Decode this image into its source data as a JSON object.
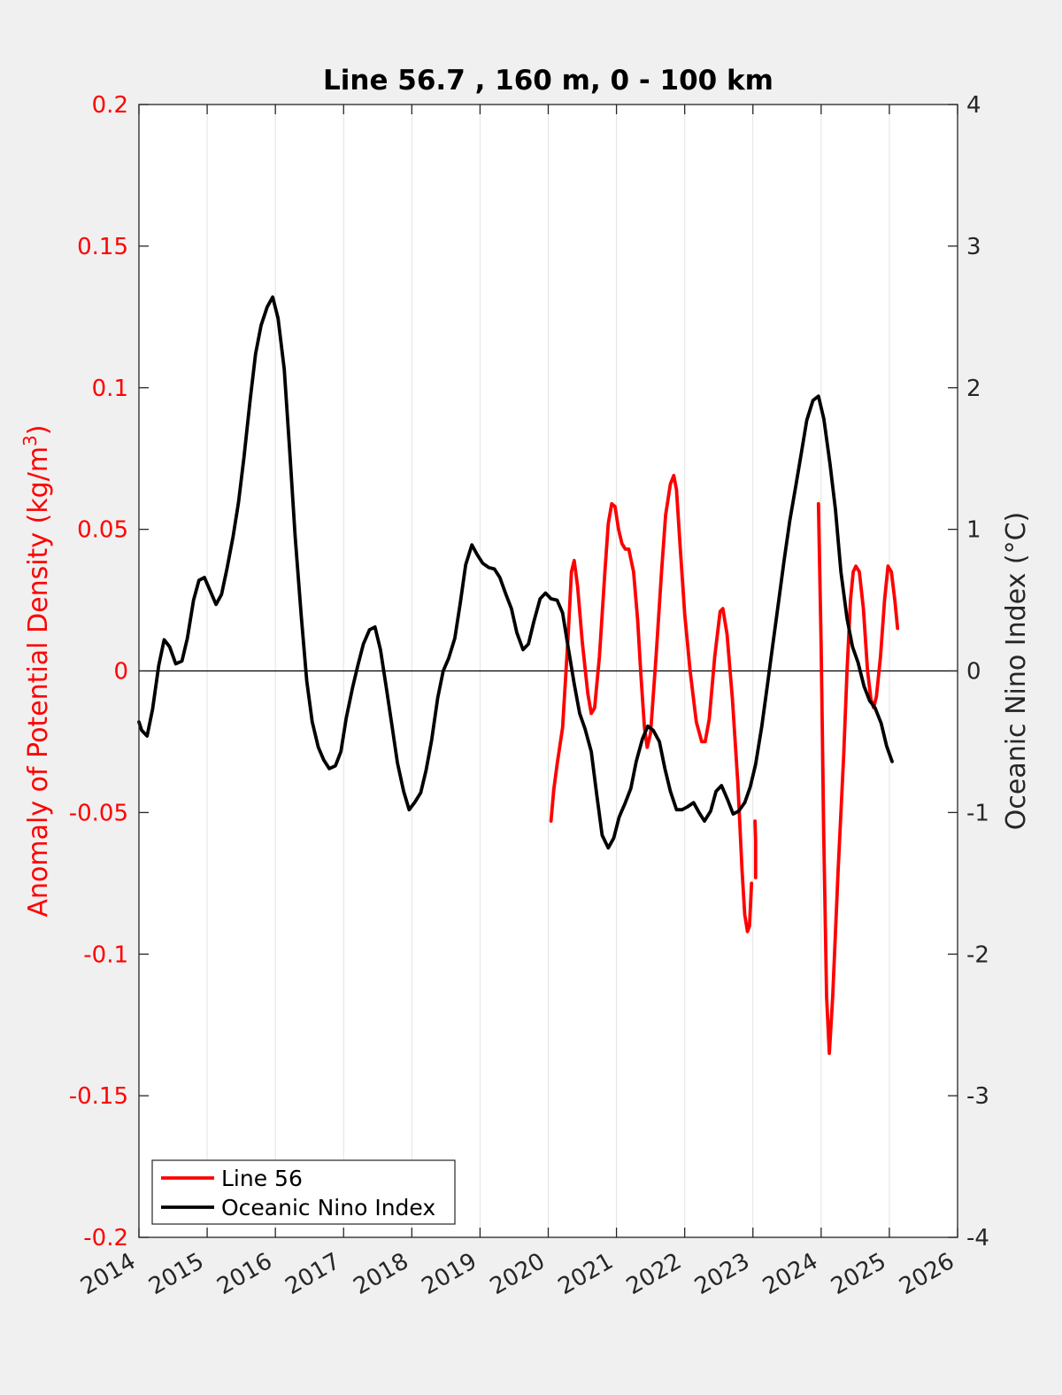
{
  "chart_data": {
    "type": "line",
    "title": "Line 56.7 , 160 m, 0 - 100 km",
    "xlabel": "",
    "ylabel_left": "Anomaly of Potential Density (kg/m",
    "ylabel_left_sup": "3",
    "ylabel_left_close": ")",
    "ylabel_right": "Oceanic Nino Index (°C)",
    "xlim": [
      2014,
      2026
    ],
    "ylim_left": [
      -0.2,
      0.2
    ],
    "ylim_right": [
      -4,
      4
    ],
    "grid": "vertical",
    "legend_position": "bottom-left",
    "x_ticks": [
      {
        "value": 2014,
        "label": "2014"
      },
      {
        "value": 2015,
        "label": "2015"
      },
      {
        "value": 2016,
        "label": "2016"
      },
      {
        "value": 2017,
        "label": "2017"
      },
      {
        "value": 2018,
        "label": "2018"
      },
      {
        "value": 2019,
        "label": "2019"
      },
      {
        "value": 2020,
        "label": "2020"
      },
      {
        "value": 2021,
        "label": "2021"
      },
      {
        "value": 2022,
        "label": "2022"
      },
      {
        "value": 2023,
        "label": "2023"
      },
      {
        "value": 2024,
        "label": "2024"
      },
      {
        "value": 2025,
        "label": "2025"
      },
      {
        "value": 2026,
        "label": "2026"
      }
    ],
    "y_ticks_left": [
      {
        "value": 0.2,
        "label": "0.2"
      },
      {
        "value": 0.15,
        "label": "0.15"
      },
      {
        "value": 0.1,
        "label": "0.1"
      },
      {
        "value": 0.05,
        "label": "0.05"
      },
      {
        "value": 0,
        "label": "0"
      },
      {
        "value": -0.05,
        "label": "-0.05"
      },
      {
        "value": -0.1,
        "label": "-0.1"
      },
      {
        "value": -0.15,
        "label": "-0.15"
      },
      {
        "value": -0.2,
        "label": "-0.2"
      }
    ],
    "y_ticks_right": [
      {
        "value": 4,
        "label": "4"
      },
      {
        "value": 3,
        "label": "3"
      },
      {
        "value": 2,
        "label": "2"
      },
      {
        "value": 1,
        "label": "1"
      },
      {
        "value": 0,
        "label": "0"
      },
      {
        "value": -1,
        "label": "-1"
      },
      {
        "value": -2,
        "label": "-2"
      },
      {
        "value": -3,
        "label": "-3"
      },
      {
        "value": -4,
        "label": "-4"
      }
    ],
    "series": [
      {
        "name": "Line 56",
        "color": "#ff0000",
        "axis": "left",
        "segments": [
          [
            [
              2020.04,
              -0.053
            ],
            [
              2020.08,
              -0.042
            ],
            [
              2020.13,
              -0.033
            ],
            [
              2020.21,
              -0.02
            ],
            [
              2020.29,
              0.012
            ],
            [
              2020.34,
              0.035
            ],
            [
              2020.38,
              0.039
            ],
            [
              2020.43,
              0.03
            ],
            [
              2020.5,
              0.01
            ],
            [
              2020.58,
              -0.008
            ],
            [
              2020.63,
              -0.015
            ],
            [
              2020.68,
              -0.013
            ],
            [
              2020.75,
              0.005
            ],
            [
              2020.83,
              0.035
            ],
            [
              2020.88,
              0.052
            ],
            [
              2020.93,
              0.059
            ],
            [
              2020.98,
              0.058
            ],
            [
              2021.03,
              0.05
            ],
            [
              2021.08,
              0.045
            ],
            [
              2021.13,
              0.043
            ],
            [
              2021.18,
              0.043
            ],
            [
              2021.25,
              0.035
            ],
            [
              2021.31,
              0.018
            ],
            [
              2021.36,
              -0.002
            ],
            [
              2021.41,
              -0.02
            ],
            [
              2021.45,
              -0.027
            ],
            [
              2021.5,
              -0.022
            ],
            [
              2021.58,
              0.005
            ],
            [
              2021.66,
              0.035
            ],
            [
              2021.72,
              0.055
            ],
            [
              2021.79,
              0.066
            ],
            [
              2021.84,
              0.069
            ],
            [
              2021.88,
              0.064
            ],
            [
              2021.93,
              0.045
            ],
            [
              2022.0,
              0.02
            ],
            [
              2022.08,
              0.0
            ],
            [
              2022.17,
              -0.018
            ],
            [
              2022.25,
              -0.025
            ],
            [
              2022.3,
              -0.025
            ],
            [
              2022.36,
              -0.017
            ],
            [
              2022.44,
              0.005
            ],
            [
              2022.52,
              0.021
            ],
            [
              2022.56,
              0.022
            ],
            [
              2022.62,
              0.013
            ],
            [
              2022.7,
              -0.01
            ],
            [
              2022.78,
              -0.04
            ],
            [
              2022.84,
              -0.07
            ],
            [
              2022.88,
              -0.086
            ],
            [
              2022.92,
              -0.092
            ],
            [
              2022.95,
              -0.09
            ],
            [
              2022.98,
              -0.075
            ]
          ],
          [
            [
              2023.03,
              -0.053
            ],
            [
              2023.04,
              -0.06
            ],
            [
              2023.04,
              -0.073
            ]
          ],
          [
            [
              2023.96,
              0.059
            ],
            [
              2024.0,
              0.01
            ],
            [
              2024.04,
              -0.06
            ],
            [
              2024.08,
              -0.115
            ],
            [
              2024.12,
              -0.135
            ],
            [
              2024.17,
              -0.115
            ],
            [
              2024.25,
              -0.07
            ],
            [
              2024.33,
              -0.03
            ],
            [
              2024.38,
              0.0
            ],
            [
              2024.43,
              0.025
            ],
            [
              2024.47,
              0.035
            ],
            [
              2024.51,
              0.037
            ],
            [
              2024.56,
              0.035
            ],
            [
              2024.62,
              0.022
            ],
            [
              2024.68,
              0.0
            ],
            [
              2024.73,
              -0.01
            ],
            [
              2024.77,
              -0.013
            ],
            [
              2024.81,
              -0.009
            ],
            [
              2024.87,
              0.005
            ],
            [
              2024.93,
              0.025
            ],
            [
              2024.98,
              0.037
            ],
            [
              2025.03,
              0.035
            ],
            [
              2025.08,
              0.025
            ],
            [
              2025.12,
              0.015
            ]
          ]
        ]
      },
      {
        "name": "Oceanic Nino Index",
        "color": "#000000",
        "axis": "right",
        "segments": [
          [
            [
              2014.0,
              -0.36
            ],
            [
              2014.04,
              -0.42
            ],
            [
              2014.12,
              -0.46
            ],
            [
              2014.2,
              -0.27
            ],
            [
              2014.29,
              0.04
            ],
            [
              2014.37,
              0.22
            ],
            [
              2014.45,
              0.17
            ],
            [
              2014.54,
              0.05
            ],
            [
              2014.63,
              0.07
            ],
            [
              2014.71,
              0.23
            ],
            [
              2014.8,
              0.5
            ],
            [
              2014.88,
              0.64
            ],
            [
              2014.96,
              0.66
            ],
            [
              2015.05,
              0.56
            ],
            [
              2015.13,
              0.47
            ],
            [
              2015.21,
              0.54
            ],
            [
              2015.29,
              0.72
            ],
            [
              2015.38,
              0.95
            ],
            [
              2015.46,
              1.19
            ],
            [
              2015.54,
              1.51
            ],
            [
              2015.63,
              1.91
            ],
            [
              2015.71,
              2.24
            ],
            [
              2015.79,
              2.44
            ],
            [
              2015.88,
              2.57
            ],
            [
              2015.96,
              2.64
            ],
            [
              2016.04,
              2.49
            ],
            [
              2016.13,
              2.13
            ],
            [
              2016.21,
              1.55
            ],
            [
              2016.29,
              0.95
            ],
            [
              2016.38,
              0.38
            ],
            [
              2016.46,
              -0.07
            ],
            [
              2016.54,
              -0.36
            ],
            [
              2016.63,
              -0.54
            ],
            [
              2016.71,
              -0.63
            ],
            [
              2016.79,
              -0.69
            ],
            [
              2016.88,
              -0.67
            ],
            [
              2016.96,
              -0.57
            ],
            [
              2017.04,
              -0.33
            ],
            [
              2017.13,
              -0.12
            ],
            [
              2017.21,
              0.04
            ],
            [
              2017.29,
              0.19
            ],
            [
              2017.38,
              0.29
            ],
            [
              2017.46,
              0.31
            ],
            [
              2017.54,
              0.15
            ],
            [
              2017.63,
              -0.13
            ],
            [
              2017.71,
              -0.39
            ],
            [
              2017.79,
              -0.65
            ],
            [
              2017.88,
              -0.85
            ],
            [
              2017.96,
              -0.98
            ],
            [
              2018.04,
              -0.93
            ],
            [
              2018.13,
              -0.86
            ],
            [
              2018.21,
              -0.7
            ],
            [
              2018.29,
              -0.49
            ],
            [
              2018.38,
              -0.19
            ],
            [
              2018.46,
              0.0
            ],
            [
              2018.54,
              0.09
            ],
            [
              2018.63,
              0.23
            ],
            [
              2018.71,
              0.48
            ],
            [
              2018.79,
              0.75
            ],
            [
              2018.88,
              0.89
            ],
            [
              2018.96,
              0.82
            ],
            [
              2019.04,
              0.76
            ],
            [
              2019.13,
              0.73
            ],
            [
              2019.21,
              0.72
            ],
            [
              2019.29,
              0.66
            ],
            [
              2019.38,
              0.54
            ],
            [
              2019.46,
              0.44
            ],
            [
              2019.54,
              0.27
            ],
            [
              2019.63,
              0.15
            ],
            [
              2019.71,
              0.19
            ],
            [
              2019.79,
              0.35
            ],
            [
              2019.88,
              0.51
            ],
            [
              2019.96,
              0.55
            ],
            [
              2020.04,
              0.51
            ],
            [
              2020.13,
              0.5
            ],
            [
              2020.21,
              0.41
            ],
            [
              2020.29,
              0.17
            ],
            [
              2020.38,
              -0.09
            ],
            [
              2020.46,
              -0.3
            ],
            [
              2020.54,
              -0.41
            ],
            [
              2020.63,
              -0.57
            ],
            [
              2020.71,
              -0.87
            ],
            [
              2020.79,
              -1.16
            ],
            [
              2020.88,
              -1.25
            ],
            [
              2020.96,
              -1.18
            ],
            [
              2021.04,
              -1.03
            ],
            [
              2021.13,
              -0.93
            ],
            [
              2021.21,
              -0.83
            ],
            [
              2021.29,
              -0.64
            ],
            [
              2021.38,
              -0.48
            ],
            [
              2021.46,
              -0.39
            ],
            [
              2021.54,
              -0.42
            ],
            [
              2021.63,
              -0.5
            ],
            [
              2021.71,
              -0.69
            ],
            [
              2021.79,
              -0.85
            ],
            [
              2021.88,
              -0.98
            ],
            [
              2021.96,
              -0.98
            ],
            [
              2022.04,
              -0.96
            ],
            [
              2022.13,
              -0.93
            ],
            [
              2022.21,
              -1.0
            ],
            [
              2022.29,
              -1.06
            ],
            [
              2022.38,
              -0.99
            ],
            [
              2022.46,
              -0.85
            ],
            [
              2022.54,
              -0.81
            ],
            [
              2022.63,
              -0.91
            ],
            [
              2022.71,
              -1.01
            ],
            [
              2022.79,
              -0.99
            ],
            [
              2022.88,
              -0.93
            ],
            [
              2022.96,
              -0.82
            ],
            [
              2023.04,
              -0.66
            ],
            [
              2023.13,
              -0.39
            ],
            [
              2023.21,
              -0.11
            ],
            [
              2023.29,
              0.18
            ],
            [
              2023.38,
              0.5
            ],
            [
              2023.46,
              0.79
            ],
            [
              2023.54,
              1.06
            ],
            [
              2023.63,
              1.31
            ],
            [
              2023.71,
              1.54
            ],
            [
              2023.79,
              1.77
            ],
            [
              2023.88,
              1.91
            ],
            [
              2023.96,
              1.94
            ],
            [
              2024.04,
              1.78
            ],
            [
              2024.13,
              1.46
            ],
            [
              2024.21,
              1.14
            ],
            [
              2024.29,
              0.7
            ],
            [
              2024.38,
              0.37
            ],
            [
              2024.46,
              0.17
            ],
            [
              2024.54,
              0.06
            ],
            [
              2024.63,
              -0.11
            ],
            [
              2024.71,
              -0.21
            ],
            [
              2024.79,
              -0.26
            ],
            [
              2024.88,
              -0.37
            ],
            [
              2024.96,
              -0.53
            ],
            [
              2025.04,
              -0.64
            ]
          ]
        ]
      }
    ]
  }
}
